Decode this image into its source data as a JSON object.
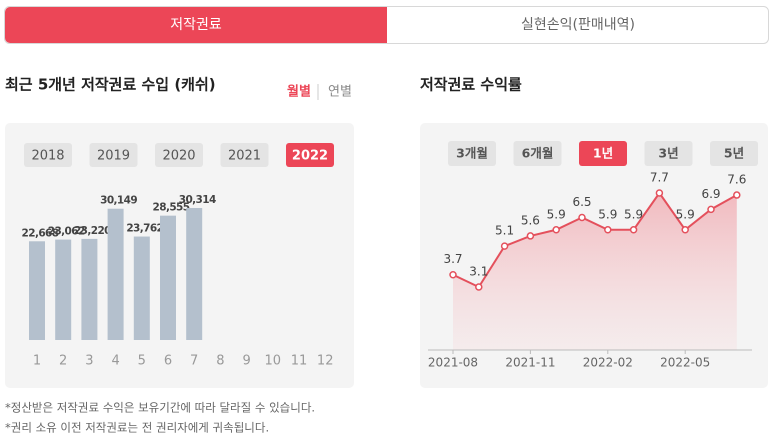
{
  "tabs": [
    "저작권료",
    "실현손익(판매내역)"
  ],
  "left": {
    "title": "최근 5개년 저작권료 수입 (캐쉬)",
    "toggle": [
      "월별",
      "연별"
    ],
    "years": [
      "2018",
      "2019",
      "2020",
      "2021",
      "2022"
    ]
  },
  "right": {
    "title": "저작권료 수익률",
    "periods": [
      "3개월",
      "6개월",
      "1년",
      "3년",
      "5년"
    ]
  },
  "chart_data": [
    {
      "type": "bar",
      "categories": [
        "1",
        "2",
        "3",
        "4",
        "5",
        "6",
        "7",
        "8",
        "9",
        "10",
        "11",
        "12"
      ],
      "values": [
        22668,
        23062,
        23220,
        30149,
        23762,
        28555,
        30314,
        null,
        null,
        null,
        null,
        null
      ],
      "value_labels": [
        "22,668",
        "23,062",
        "23,220",
        "30,149",
        "23,762",
        "28,555",
        "30,314",
        null,
        null,
        null,
        null,
        null
      ],
      "color": "#b4c0cd"
    },
    {
      "type": "line",
      "categories": [
        "2021-08",
        null,
        null,
        "2021-11",
        null,
        null,
        "2022-02",
        null,
        null,
        "2022-05",
        null,
        null
      ],
      "values": [
        3.7,
        3.1,
        5.1,
        5.6,
        5.9,
        6.5,
        5.9,
        5.9,
        7.7,
        5.9,
        6.9,
        7.6
      ],
      "color": "#e4505c"
    }
  ],
  "notes": [
    "*정산받은 저작권료 수익은 보유기간에 따라 달라질 수 있습니다.",
    "*권리 소유 이전 저작권료는 전 권리자에게 귀속됩니다."
  ]
}
